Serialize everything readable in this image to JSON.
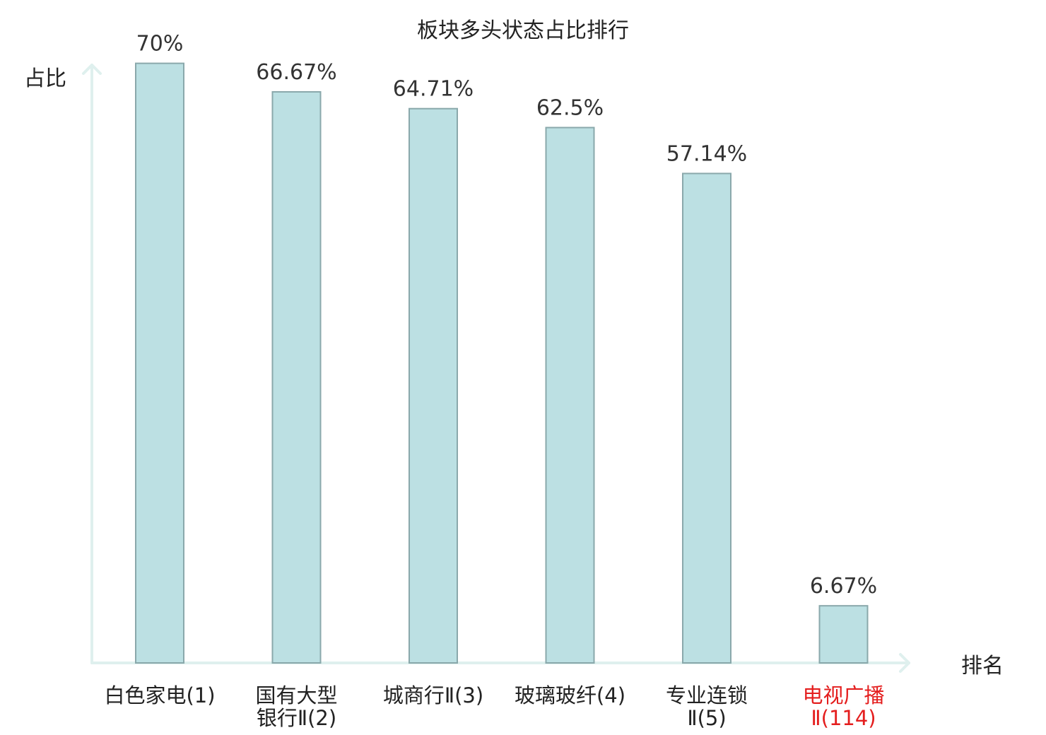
{
  "chart_data": {
    "type": "bar",
    "title": "板块多头状态占比排行",
    "ylabel": "占比",
    "xlabel": "排名",
    "ylim": [
      0,
      72
    ],
    "grid": false,
    "categories": [
      {
        "lines": [
          "白色家电(1)"
        ],
        "highlight": false
      },
      {
        "lines": [
          "国有大型",
          "银行Ⅱ(2)"
        ],
        "highlight": false
      },
      {
        "lines": [
          "城商行Ⅱ(3)"
        ],
        "highlight": false
      },
      {
        "lines": [
          "玻璃玻纤(4)"
        ],
        "highlight": false
      },
      {
        "lines": [
          "专业连锁",
          "Ⅱ(5)"
        ],
        "highlight": false
      },
      {
        "lines": [
          "电视广播",
          "Ⅱ(114)"
        ],
        "highlight": true
      }
    ],
    "values": [
      70,
      66.67,
      64.71,
      62.5,
      57.14,
      6.67
    ],
    "value_labels": [
      "70%",
      "66.67%",
      "64.71%",
      "62.5%",
      "57.14%",
      "6.67%"
    ],
    "colors": {
      "bar_fill": "#bce0e3",
      "bar_stroke": "#8aa8ab",
      "axis": "#dff0ee",
      "highlight": "#e41e1e"
    }
  }
}
